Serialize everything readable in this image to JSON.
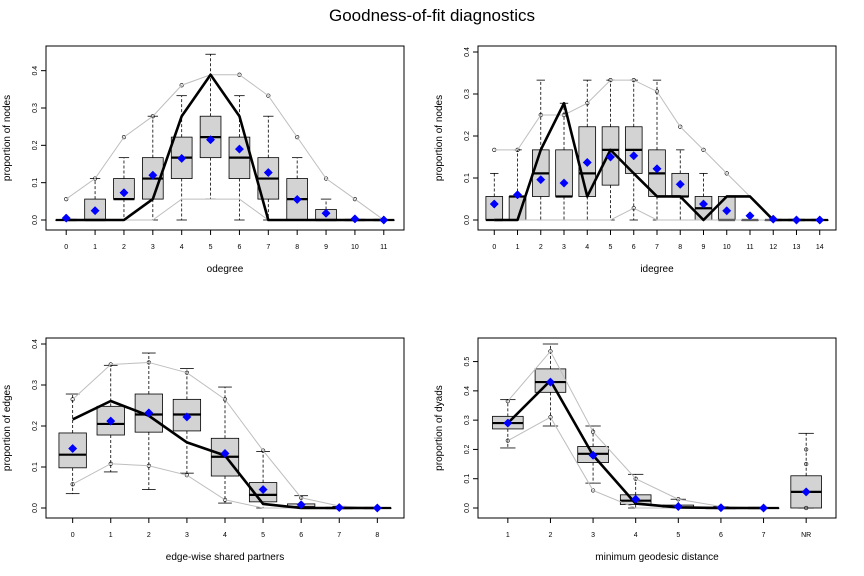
{
  "title": "Goodness-of-fit diagnostics",
  "colors": {
    "box_fill": "#d3d3d3",
    "mean_marker": "#0000ff",
    "observed_line": "#000000",
    "envelope": "#bebebe"
  },
  "chart_data": [
    {
      "type": "box",
      "xlabel": "odegree",
      "ylabel": "proportion of nodes",
      "categories": [
        "0",
        "1",
        "2",
        "3",
        "4",
        "5",
        "6",
        "7",
        "8",
        "9",
        "10",
        "11"
      ],
      "ylim": [
        0,
        0.45
      ],
      "yticks": [
        0,
        0.1,
        0.2,
        0.3,
        0.4
      ],
      "ytick_labels": [
        "0.0",
        "0.1",
        "0.2",
        "0.3",
        "0.4"
      ],
      "observed": [
        0,
        0,
        0,
        0.056,
        0.278,
        0.389,
        0.278,
        0,
        0,
        0,
        0,
        0
      ],
      "means": [
        0.005,
        0.025,
        0.073,
        0.12,
        0.165,
        0.215,
        0.19,
        0.127,
        0.055,
        0.018,
        0.003,
        0
      ],
      "boxes": [
        {
          "wlo": 0,
          "q1": 0,
          "med": 0,
          "q3": 0,
          "whi": 0
        },
        {
          "wlo": 0,
          "q1": 0,
          "med": 0,
          "q3": 0.056,
          "whi": 0.111
        },
        {
          "wlo": 0,
          "q1": 0.056,
          "med": 0.056,
          "q3": 0.111,
          "whi": 0.167
        },
        {
          "wlo": 0,
          "q1": 0.056,
          "med": 0.111,
          "q3": 0.167,
          "whi": 0.278
        },
        {
          "wlo": 0,
          "q1": 0.111,
          "med": 0.167,
          "q3": 0.222,
          "whi": 0.333
        },
        {
          "wlo": 0.056,
          "q1": 0.167,
          "med": 0.222,
          "q3": 0.278,
          "whi": 0.444
        },
        {
          "wlo": 0,
          "q1": 0.111,
          "med": 0.167,
          "q3": 0.222,
          "whi": 0.333
        },
        {
          "wlo": 0,
          "q1": 0.056,
          "med": 0.111,
          "q3": 0.167,
          "whi": 0.278
        },
        {
          "wlo": 0,
          "q1": 0,
          "med": 0.056,
          "q3": 0.111,
          "whi": 0.167
        },
        {
          "wlo": 0,
          "q1": 0,
          "med": 0,
          "q3": 0.028,
          "whi": 0.056
        },
        {
          "wlo": 0,
          "q1": 0,
          "med": 0,
          "q3": 0,
          "whi": 0
        },
        {
          "wlo": 0,
          "q1": 0,
          "med": 0,
          "q3": 0,
          "whi": 0
        }
      ],
      "env_low": [
        0,
        0,
        0,
        0,
        0.056,
        0.056,
        0.056,
        0,
        0,
        0,
        0,
        0
      ],
      "env_high": [
        0.056,
        0.111,
        0.222,
        0.278,
        0.361,
        0.389,
        0.389,
        0.333,
        0.222,
        0.111,
        0.056,
        0
      ],
      "outliers": [
        {
          "i": 0,
          "v": 0.056
        },
        {
          "i": 1,
          "v": 0.111
        },
        {
          "i": 2,
          "v": 0.222
        },
        {
          "i": 3,
          "v": 0.278
        },
        {
          "i": 4,
          "v": 0.361
        },
        {
          "i": 6,
          "v": 0.389
        },
        {
          "i": 7,
          "v": 0.333
        },
        {
          "i": 8,
          "v": 0.222
        },
        {
          "i": 9,
          "v": 0.111
        },
        {
          "i": 10,
          "v": 0.056
        }
      ]
    },
    {
      "type": "box",
      "xlabel": "idegree",
      "ylabel": "proportion of nodes",
      "categories": [
        "0",
        "1",
        "2",
        "3",
        "4",
        "5",
        "6",
        "7",
        "8",
        "9",
        "10",
        "11",
        "12",
        "13",
        "14"
      ],
      "ylim": [
        0,
        0.4
      ],
      "yticks": [
        0,
        0.1,
        0.2,
        0.3,
        0.4
      ],
      "ytick_labels": [
        "0.0",
        "0.1",
        "0.2",
        "0.3",
        "0.4"
      ],
      "observed": [
        0,
        0,
        0.167,
        0.278,
        0.056,
        0.167,
        0.111,
        0.056,
        0.056,
        0,
        0.056,
        0.056,
        0,
        0,
        0
      ],
      "means": [
        0.038,
        0.06,
        0.096,
        0.088,
        0.137,
        0.15,
        0.153,
        0.122,
        0.085,
        0.038,
        0.022,
        0.01,
        0.002,
        0,
        0
      ],
      "boxes": [
        {
          "wlo": 0,
          "q1": 0,
          "med": 0,
          "q3": 0.056,
          "whi": 0.111
        },
        {
          "wlo": 0,
          "q1": 0,
          "med": 0.056,
          "q3": 0.056,
          "whi": 0.167
        },
        {
          "wlo": 0,
          "q1": 0.056,
          "med": 0.111,
          "q3": 0.167,
          "whi": 0.333
        },
        {
          "wlo": 0,
          "q1": 0.056,
          "med": 0.056,
          "q3": 0.167,
          "whi": 0.278
        },
        {
          "wlo": 0,
          "q1": 0.056,
          "med": 0.111,
          "q3": 0.222,
          "whi": 0.333
        },
        {
          "wlo": 0,
          "q1": 0.083,
          "med": 0.167,
          "q3": 0.222,
          "whi": 0.333
        },
        {
          "wlo": 0,
          "q1": 0.111,
          "med": 0.167,
          "q3": 0.222,
          "whi": 0.333
        },
        {
          "wlo": 0,
          "q1": 0.056,
          "med": 0.111,
          "q3": 0.167,
          "whi": 0.333
        },
        {
          "wlo": 0,
          "q1": 0.056,
          "med": 0.056,
          "q3": 0.111,
          "whi": 0.167
        },
        {
          "wlo": 0,
          "q1": 0,
          "med": 0.028,
          "q3": 0.056,
          "whi": 0.111
        },
        {
          "wlo": 0,
          "q1": 0,
          "med": 0,
          "q3": 0.056,
          "whi": 0.056
        },
        {
          "wlo": 0,
          "q1": 0,
          "med": 0,
          "q3": 0,
          "whi": 0
        },
        {
          "wlo": 0,
          "q1": 0,
          "med": 0,
          "q3": 0,
          "whi": 0
        },
        {
          "wlo": 0,
          "q1": 0,
          "med": 0,
          "q3": 0,
          "whi": 0
        },
        {
          "wlo": 0,
          "q1": 0,
          "med": 0,
          "q3": 0,
          "whi": 0
        }
      ],
      "env_low": [
        0,
        0,
        0,
        0,
        0,
        0,
        0.028,
        0,
        0,
        0,
        0,
        0,
        0,
        0,
        0
      ],
      "env_high": [
        0.167,
        0.167,
        0.25,
        0.25,
        0.278,
        0.333,
        0.333,
        0.306,
        0.222,
        0.167,
        0.111,
        0.056,
        0,
        0,
        0
      ],
      "outliers": [
        {
          "i": 0,
          "v": 0.167
        },
        {
          "i": 1,
          "v": 0.167
        },
        {
          "i": 2,
          "v": 0.25
        },
        {
          "i": 3,
          "v": 0.25
        },
        {
          "i": 4,
          "v": 0.278
        },
        {
          "i": 5,
          "v": 0.333
        },
        {
          "i": 6,
          "v": 0.333
        },
        {
          "i": 6,
          "v": 0.028
        },
        {
          "i": 7,
          "v": 0.306
        },
        {
          "i": 8,
          "v": 0.222
        },
        {
          "i": 9,
          "v": 0.167
        },
        {
          "i": 10,
          "v": 0.111
        }
      ]
    },
    {
      "type": "box",
      "xlabel": "edge-wise shared partners",
      "ylabel": "proportion of edges",
      "categories": [
        "0",
        "1",
        "2",
        "3",
        "4",
        "5",
        "6",
        "7",
        "8"
      ],
      "ylim": [
        0,
        0.4
      ],
      "yticks": [
        0,
        0.1,
        0.2,
        0.3,
        0.4
      ],
      "ytick_labels": [
        "0.0",
        "0.1",
        "0.2",
        "0.3",
        "0.4"
      ],
      "observed": [
        0.216,
        0.261,
        0.225,
        0.16,
        0.128,
        0.01,
        0,
        0,
        0
      ],
      "means": [
        0.145,
        0.212,
        0.232,
        0.222,
        0.133,
        0.045,
        0.008,
        0.001,
        0
      ],
      "boxes": [
        {
          "wlo": 0.035,
          "q1": 0.098,
          "med": 0.13,
          "q3": 0.183,
          "whi": 0.278
        },
        {
          "wlo": 0.088,
          "q1": 0.178,
          "med": 0.205,
          "q3": 0.248,
          "whi": 0.348
        },
        {
          "wlo": 0.045,
          "q1": 0.185,
          "med": 0.228,
          "q3": 0.278,
          "whi": 0.378
        },
        {
          "wlo": 0.085,
          "q1": 0.188,
          "med": 0.228,
          "q3": 0.265,
          "whi": 0.34
        },
        {
          "wlo": 0.012,
          "q1": 0.078,
          "med": 0.125,
          "q3": 0.17,
          "whi": 0.295
        },
        {
          "wlo": 0,
          "q1": 0.015,
          "med": 0.032,
          "q3": 0.062,
          "whi": 0.138
        },
        {
          "wlo": 0,
          "q1": 0,
          "med": 0.002,
          "q3": 0.01,
          "whi": 0.03
        },
        {
          "wlo": 0,
          "q1": 0,
          "med": 0,
          "q3": 0,
          "whi": 0.004
        },
        {
          "wlo": 0,
          "q1": 0,
          "med": 0,
          "q3": 0,
          "whi": 0
        }
      ],
      "env_low": [
        0.058,
        0.108,
        0.103,
        0.08,
        0.02,
        0,
        0,
        0,
        0
      ],
      "env_high": [
        0.265,
        0.35,
        0.355,
        0.33,
        0.265,
        0.14,
        0.025,
        0.005,
        0
      ],
      "outliers": [
        {
          "i": 0,
          "v": 0.265
        },
        {
          "i": 0,
          "v": 0.058
        },
        {
          "i": 1,
          "v": 0.35
        },
        {
          "i": 1,
          "v": 0.108
        },
        {
          "i": 2,
          "v": 0.355
        },
        {
          "i": 2,
          "v": 0.103
        },
        {
          "i": 3,
          "v": 0.33
        },
        {
          "i": 3,
          "v": 0.08
        },
        {
          "i": 4,
          "v": 0.265
        },
        {
          "i": 4,
          "v": 0.02
        },
        {
          "i": 5,
          "v": 0.14
        },
        {
          "i": 6,
          "v": 0.025
        }
      ]
    },
    {
      "type": "box",
      "xlabel": "minimum geodesic distance",
      "ylabel": "proportion of dyads",
      "categories": [
        "1",
        "2",
        "3",
        "4",
        "5",
        "6",
        "7",
        "NR"
      ],
      "ylim": [
        0,
        0.56
      ],
      "yticks": [
        0,
        0.1,
        0.2,
        0.3,
        0.4,
        0.5
      ],
      "ytick_labels": [
        "0.0",
        "0.1",
        "0.2",
        "0.3",
        "0.4",
        "0.5"
      ],
      "observed": [
        0.29,
        0.435,
        0.18,
        0.015,
        0.002,
        0,
        0
      ],
      "means": [
        0.29,
        0.43,
        0.18,
        0.03,
        0.005,
        0.001,
        0,
        0.055
      ],
      "boxes": [
        {
          "wlo": 0.205,
          "q1": 0.27,
          "med": 0.29,
          "q3": 0.313,
          "whi": 0.37
        },
        {
          "wlo": 0.28,
          "q1": 0.395,
          "med": 0.43,
          "q3": 0.475,
          "whi": 0.56
        },
        {
          "wlo": 0.085,
          "q1": 0.155,
          "med": 0.185,
          "q3": 0.21,
          "whi": 0.28
        },
        {
          "wlo": 0,
          "q1": 0.012,
          "med": 0.025,
          "q3": 0.045,
          "whi": 0.115
        },
        {
          "wlo": 0,
          "q1": 0,
          "med": 0.002,
          "q3": 0.01,
          "whi": 0.03
        },
        {
          "wlo": 0,
          "q1": 0,
          "med": 0,
          "q3": 0,
          "whi": 0.005
        },
        {
          "wlo": 0,
          "q1": 0,
          "med": 0,
          "q3": 0,
          "whi": 0
        },
        {
          "wlo": 0,
          "q1": 0,
          "med": 0.055,
          "q3": 0.11,
          "whi": 0.255
        }
      ],
      "env_low": [
        0.23,
        0.31,
        0.06,
        0,
        0,
        0,
        0
      ],
      "env_high": [
        0.365,
        0.535,
        0.26,
        0.1,
        0.03,
        0.005,
        0
      ],
      "outliers": [
        {
          "i": 0,
          "v": 0.365
        },
        {
          "i": 0,
          "v": 0.23
        },
        {
          "i": 1,
          "v": 0.535
        },
        {
          "i": 1,
          "v": 0.31
        },
        {
          "i": 2,
          "v": 0.26
        },
        {
          "i": 2,
          "v": 0.06
        },
        {
          "i": 3,
          "v": 0.1
        },
        {
          "i": 4,
          "v": 0.03
        },
        {
          "i": 7,
          "v": 0.2
        },
        {
          "i": 7,
          "v": 0.15
        },
        {
          "i": 7,
          "v": 0
        }
      ]
    }
  ]
}
